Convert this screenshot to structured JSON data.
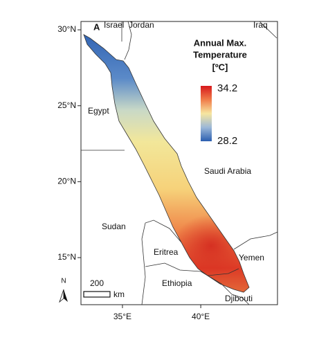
{
  "map": {
    "panel_label": "A",
    "xlim": [
      32.35,
      44.9
    ],
    "ylim": [
      11.9,
      30.55
    ],
    "xticks": [
      {
        "value": 35,
        "label": "35°E"
      },
      {
        "value": 40,
        "label": "40°E"
      }
    ],
    "yticks": [
      {
        "value": 30,
        "label": "30°N"
      },
      {
        "value": 25,
        "label": "25°N"
      },
      {
        "value": 20,
        "label": "20°N"
      },
      {
        "value": 15,
        "label": "15°N"
      }
    ],
    "places": [
      "Israel",
      "Jordan",
      "Iraq",
      "Egypt",
      "Saudi Arabia",
      "Sudan",
      "Eritrea",
      "Yemen",
      "Ethiopia",
      "Djibouti"
    ],
    "legend": {
      "title": [
        "Annual Max.",
        "Temperature",
        "[ºC]"
      ],
      "max": 34.2,
      "min": 28.2
    },
    "scale_bar": {
      "value": "200",
      "unit": "km"
    },
    "north": "N"
  }
}
